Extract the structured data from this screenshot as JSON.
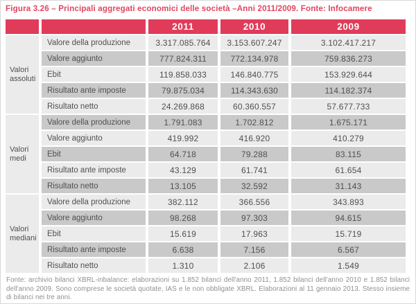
{
  "title": "Figura 3.26 – Principali aggregati economici delle società –Anni 2011/2009. Fonte: Infocamere",
  "table": {
    "year_headers": [
      "2011",
      "2010",
      "2009"
    ],
    "groups": [
      {
        "label": "Valori assoluti",
        "rows": [
          {
            "label": "Valore della produzione",
            "values": [
              "3.317.085.764",
              "3.153.607.247",
              "3.102.417.217"
            ]
          },
          {
            "label": "Valore aggiunto",
            "values": [
              "777.824.311",
              "772.134.978",
              "759.836.273"
            ]
          },
          {
            "label": "Ebit",
            "values": [
              "119.858.033",
              "146.840.775",
              "153.929.644"
            ]
          },
          {
            "label": "Risultato ante imposte",
            "values": [
              "79.875.034",
              "114.343.630",
              "114.182.374"
            ]
          },
          {
            "label": "Risultato netto",
            "values": [
              "24.269.868",
              "60.360.557",
              "57.677.733"
            ]
          }
        ]
      },
      {
        "label": "Valori medi",
        "rows": [
          {
            "label": "Valore della produzione",
            "values": [
              "1.791.083",
              "1.702.812",
              "1.675.171"
            ]
          },
          {
            "label": "Valore aggiunto",
            "values": [
              "419.992",
              "416.920",
              "410.279"
            ]
          },
          {
            "label": "Ebit",
            "values": [
              "64.718",
              "79.288",
              "83.115"
            ]
          },
          {
            "label": "Risultato ante imposte",
            "values": [
              "43.129",
              "61.741",
              "61.654"
            ]
          },
          {
            "label": "Risultato netto",
            "values": [
              "13.105",
              "32.592",
              "31.143"
            ]
          }
        ]
      },
      {
        "label": "Valori mediani",
        "rows": [
          {
            "label": "Valore della produzione",
            "values": [
              "382.112",
              "366.556",
              "343.893"
            ]
          },
          {
            "label": "Valore aggiunto",
            "values": [
              "98.268",
              "97.303",
              "94.615"
            ]
          },
          {
            "label": "Ebit",
            "values": [
              "15.619",
              "17.963",
              "15.719"
            ]
          },
          {
            "label": "Risultato ante imposte",
            "values": [
              "6.638",
              "7.156",
              "6.567"
            ]
          },
          {
            "label": "Risultato netto",
            "values": [
              "1.310",
              "2.106",
              "1.549"
            ]
          }
        ]
      }
    ]
  },
  "footnote": "Fonte: archivio bilanci XBRL-inbalance: elaborazioni su 1.852 bilanci dell'anno 2011, 1.852 bilanci dell'anno 2010 e 1.852 bilanci dell'anno 2009. Sono comprese le società quotate, IAS e le non obbligate XBRL. Elaborazioni al 11 gennaio 2013. Stesso insieme di bilanci nei tre anni.",
  "colors": {
    "accent_pink": "#e13b5a",
    "title_pink": "#e0455f",
    "row_light": "#ebebeb",
    "row_dark": "#c9c9c9",
    "table_text": "#4f4f4f",
    "footnote_text": "#8f8f8f"
  }
}
